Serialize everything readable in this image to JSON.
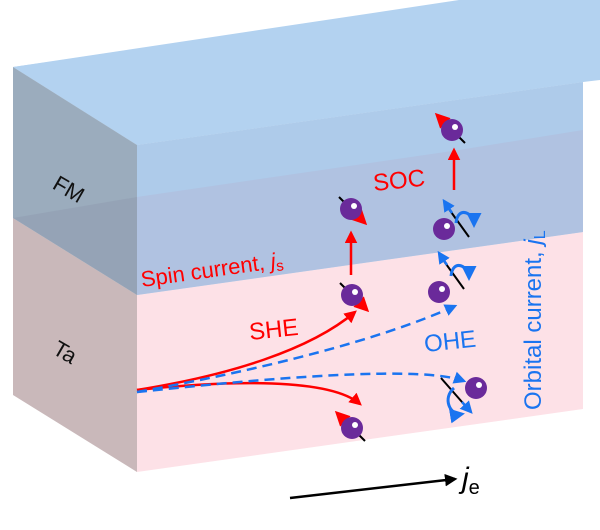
{
  "layers": {
    "top": "FM",
    "bottom": "Ta"
  },
  "labels": {
    "spin_current": "Spin current, ",
    "spin_symbol": "j",
    "spin_sub": "s",
    "she": "SHE",
    "soc": "SOC",
    "ohe": "OHE",
    "orbital_current": "Orbital current, ",
    "orbital_symbol": "j",
    "orbital_sub": "L",
    "charge_symbol": "j",
    "charge_sub": "e"
  },
  "colors": {
    "fm_front": "#b0cfee",
    "fm_side": "#9bacbd",
    "ta_front": "#fde1e7",
    "ta_side": "#c9b8ba",
    "spin": "#ff0000",
    "orbital": "#1a74f0",
    "electron": "#6a2a9a"
  }
}
